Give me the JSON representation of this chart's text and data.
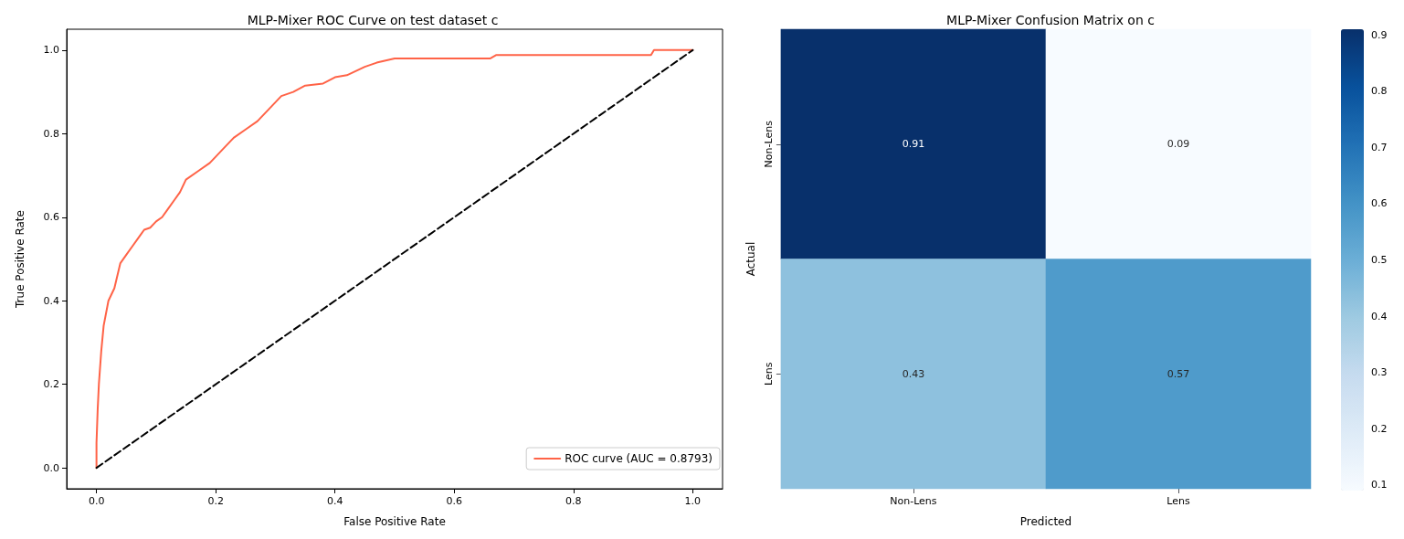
{
  "chart_data": [
    {
      "type": "line",
      "title": "MLP-Mixer ROC Curve on test dataset c",
      "xlabel": "False Positive Rate",
      "ylabel": "True Positive Rate",
      "xlim": [
        -0.05,
        1.05
      ],
      "ylim": [
        -0.05,
        1.05
      ],
      "xticks": [
        {
          "value": 0,
          "label": "0.0"
        },
        0.2,
        0.4,
        0.6,
        0.8,
        {
          "value": 1,
          "label": "1.0"
        }
      ],
      "yticks": [
        {
          "value": 0,
          "label": "0.0"
        },
        0.2,
        0.4,
        0.6,
        0.8,
        {
          "value": 1,
          "label": "1.0"
        }
      ],
      "grid": false,
      "legend": "lower right",
      "series": [
        {
          "name": "ROC curve (AUC = 0.8793)",
          "color": "#ff6347",
          "x": [
            0,
            0,
            0.002,
            0.004,
            0.008,
            0.012,
            0.02,
            0.03,
            0.04,
            0.05,
            0.06,
            0.07,
            0.08,
            0.09,
            0.1,
            0.11,
            0.12,
            0.13,
            0.14,
            0.15,
            0.17,
            0.19,
            0.21,
            0.23,
            0.25,
            0.27,
            0.29,
            0.31,
            0.33,
            0.35,
            0.38,
            0.4,
            0.42,
            0.45,
            0.47,
            0.5,
            0.66,
            0.67,
            0.93,
            0.935,
            1
          ],
          "values": [
            0,
            0.06,
            0.14,
            0.2,
            0.28,
            0.34,
            0.4,
            0.43,
            0.49,
            0.51,
            0.53,
            0.55,
            0.57,
            0.575,
            0.59,
            0.6,
            0.62,
            0.64,
            0.66,
            0.69,
            0.71,
            0.73,
            0.76,
            0.79,
            0.81,
            0.83,
            0.86,
            0.89,
            0.9,
            0.915,
            0.92,
            0.935,
            0.94,
            0.96,
            0.97,
            0.98,
            0.98,
            0.988,
            0.988,
            1,
            1
          ]
        },
        {
          "color": "#000000",
          "line_style": "dashed",
          "x": [
            0,
            1
          ],
          "values": [
            0,
            1
          ]
        }
      ]
    },
    {
      "type": "heatmap",
      "title": "MLP-Mixer Confusion Matrix on c",
      "xlabel": "Predicted",
      "ylabel": "Actual",
      "categories": [
        "Non-Lens",
        "Lens"
      ],
      "y_categories": [
        "Non-Lens",
        "Lens"
      ],
      "cells": [
        [
          0.91,
          0.09
        ],
        [
          0.43,
          0.57
        ]
      ],
      "data_labels": true,
      "clim": [
        0.09,
        0.91
      ],
      "cticks": [
        0.1,
        0.2,
        0.3,
        0.4,
        0.5,
        0.6,
        0.7,
        0.8,
        0.9
      ]
    }
  ]
}
